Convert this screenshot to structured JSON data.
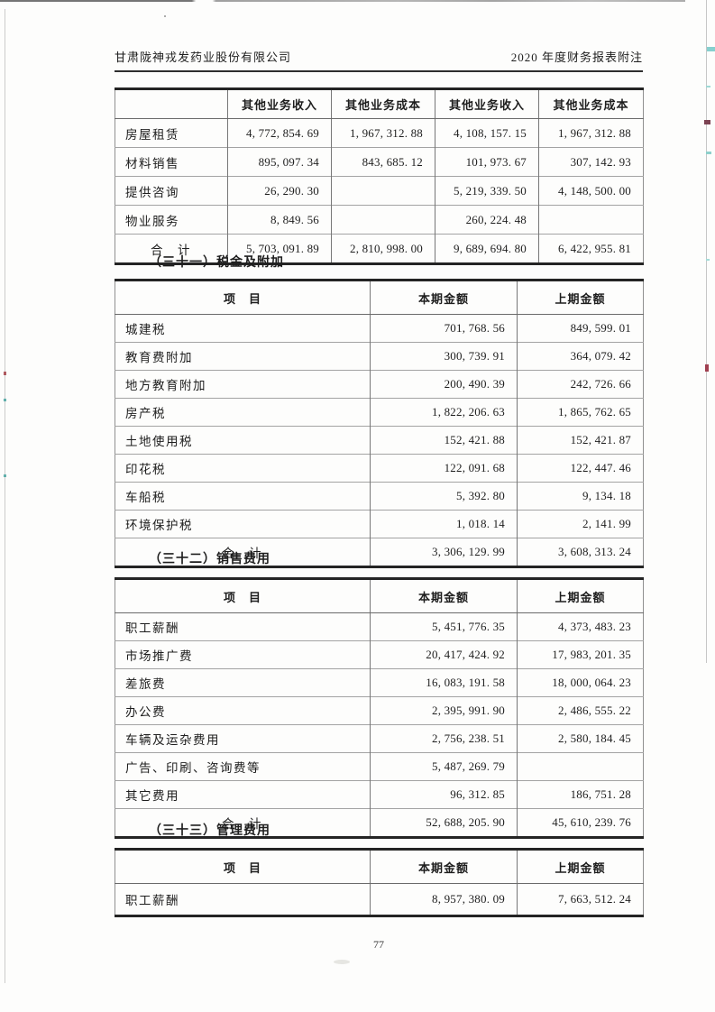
{
  "page": {
    "header_left": "甘肃陇神戎发药业股份有限公司",
    "header_right": "2020 年度财务报表附注",
    "page_number": "77"
  },
  "other_business_table": {
    "columns": [
      "",
      "其他业务收入",
      "其他业务成本",
      "其他业务收入",
      "其他业务成本"
    ],
    "rows": [
      {
        "label": "房屋租赁",
        "values": [
          "4, 772, 854. 69",
          "1, 967, 312. 88",
          "4, 108, 157. 15",
          "1, 967, 312. 88"
        ]
      },
      {
        "label": "材料销售",
        "values": [
          "895, 097. 34",
          "843, 685. 12",
          "101, 973. 67",
          "307, 142. 93"
        ]
      },
      {
        "label": "提供咨询",
        "values": [
          "26, 290. 30",
          "",
          "5, 219, 339. 50",
          "4, 148, 500. 00"
        ]
      },
      {
        "label": "物业服务",
        "values": [
          "8, 849. 56",
          "",
          "260, 224. 48",
          ""
        ]
      },
      {
        "label": "合　计",
        "total": true,
        "values": [
          "5, 703, 091. 89",
          "2, 810, 998. 00",
          "9, 689, 694. 80",
          "6, 422, 955. 81"
        ]
      }
    ]
  },
  "sections": [
    {
      "title": "（三十一）税金及附加",
      "columns": [
        "项　目",
        "本期金额",
        "上期金额"
      ],
      "rows": [
        {
          "label": "城建税",
          "values": [
            "701, 768. 56",
            "849, 599. 01"
          ]
        },
        {
          "label": "教育费附加",
          "values": [
            "300, 739. 91",
            "364, 079. 42"
          ]
        },
        {
          "label": "地方教育附加",
          "values": [
            "200, 490. 39",
            "242, 726. 66"
          ]
        },
        {
          "label": "房产税",
          "values": [
            "1, 822, 206. 63",
            "1, 865, 762. 65"
          ]
        },
        {
          "label": "土地使用税",
          "values": [
            "152, 421. 88",
            "152, 421. 87"
          ]
        },
        {
          "label": "印花税",
          "values": [
            "122, 091. 68",
            "122, 447. 46"
          ]
        },
        {
          "label": "车船税",
          "values": [
            "5, 392. 80",
            "9, 134. 18"
          ]
        },
        {
          "label": "环境保护税",
          "values": [
            "1, 018. 14",
            "2, 141. 99"
          ]
        },
        {
          "label": "合　计",
          "total": true,
          "values": [
            "3, 306, 129. 99",
            "3, 608, 313. 24"
          ]
        }
      ]
    },
    {
      "title": "（三十二）销售费用",
      "columns": [
        "项　目",
        "本期金额",
        "上期金额"
      ],
      "rows": [
        {
          "label": "职工薪酬",
          "values": [
            "5, 451, 776. 35",
            "4, 373, 483. 23"
          ]
        },
        {
          "label": "市场推广费",
          "values": [
            "20, 417, 424. 92",
            "17, 983, 201. 35"
          ]
        },
        {
          "label": "差旅费",
          "values": [
            "16, 083, 191. 58",
            "18, 000, 064. 23"
          ]
        },
        {
          "label": "办公费",
          "values": [
            "2, 395, 991. 90",
            "2, 486, 555. 22"
          ]
        },
        {
          "label": "车辆及运杂费用",
          "values": [
            "2, 756, 238. 51",
            "2, 580, 184. 45"
          ]
        },
        {
          "label": "广告、印刷、咨询费等",
          "values": [
            "5, 487, 269. 79",
            ""
          ]
        },
        {
          "label": "其它费用",
          "values": [
            "96, 312. 85",
            "186, 751. 28"
          ]
        },
        {
          "label": "合　计",
          "total": true,
          "values": [
            "52, 688, 205. 90",
            "45, 610, 239. 76"
          ]
        }
      ]
    },
    {
      "title": "（三十三）管理费用",
      "columns": [
        "项　目",
        "本期金额",
        "上期金额"
      ],
      "rows": [
        {
          "label": "职工薪酬",
          "values": [
            "8, 957, 380. 09",
            "7, 663, 512. 24"
          ]
        }
      ]
    }
  ]
}
